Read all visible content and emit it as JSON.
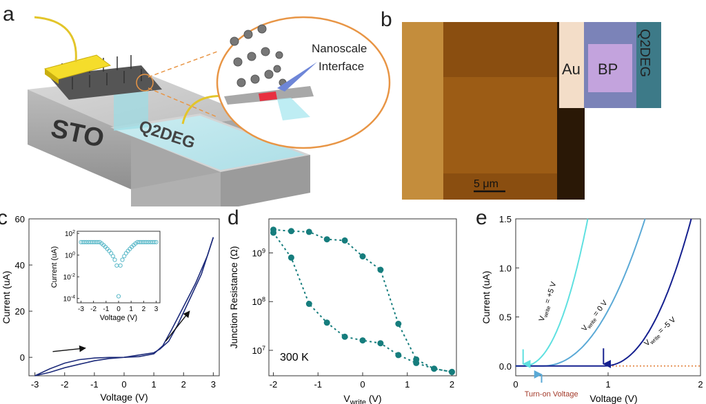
{
  "panels": {
    "a": {
      "letter": "a",
      "labels": {
        "sto": "STO",
        "q2deg": "Q2DEG",
        "callout": [
          "Nanoscale",
          "Interface"
        ]
      }
    },
    "b": {
      "letter": "b",
      "labels": {
        "au": "Au",
        "bp": "BP",
        "q2deg": "Q2DEG",
        "scalebar": "5 μm"
      }
    },
    "c": {
      "letter": "c",
      "chart_data": {
        "type": "line",
        "xlabel": "Voltage (V)",
        "ylabel": "Current (uA)",
        "xlim": [
          -3.2,
          3.2
        ],
        "ylim": [
          -8,
          60
        ],
        "xticks": [
          "-3",
          "-2",
          "-1",
          "0",
          "1",
          "2",
          "3"
        ],
        "yticks": [
          "0",
          "20",
          "40",
          "60"
        ],
        "series": [
          {
            "x": [
              -3,
              -2.5,
              -2,
              -1.5,
              -1,
              -0.5,
              0,
              0.5,
              1,
              1.3,
              1.6,
              2,
              2.4,
              2.8,
              3
            ],
            "y": [
              -8,
              -5,
              -2.5,
              -1,
              -0.3,
              -0.05,
              0,
              0.3,
              1.5,
              5,
              12,
              22,
              32,
              44,
              52
            ]
          },
          {
            "x": [
              3,
              2.6,
              2.2,
              1.8,
              1.5,
              1.2,
              1,
              0.5,
              0,
              -0.5,
              -1,
              -1.5,
              -2,
              -2.5,
              -3
            ],
            "y": [
              52,
              36,
              25,
              14,
              7,
              3.5,
              2,
              1,
              0,
              -0.5,
              -1.5,
              -3,
              -4.5,
              -6.5,
              -8
            ]
          }
        ],
        "inset": {
          "xlabel": "Voltage (V)",
          "ylabel": "Current (uA)",
          "xticks": [
            "-3",
            "-2",
            "-1",
            "0",
            "1",
            "2",
            "3"
          ],
          "yticks": [
            "10^2",
            "10^0",
            "10^-2",
            "10^-4"
          ]
        }
      }
    },
    "d": {
      "letter": "d",
      "chart_data": {
        "type": "scatter",
        "xlabel": "V_write (V)",
        "ylabel": "Junction Resistance (Ω)",
        "yscale": "log",
        "xlim": [
          -2.1,
          2.1
        ],
        "ylim": [
          3000000,
          5000000000
        ],
        "xticks": [
          "-2",
          "-1",
          "0",
          "1",
          "2"
        ],
        "annotation": "300 K",
        "series": [
          {
            "x": [
              -2,
              -1.6,
              -1.2,
              -0.8,
              -0.4,
              0,
              0.4,
              0.8,
              1.2,
              1.6,
              2
            ],
            "y": [
              3000000000,
              2800000000,
              2700000000,
              1900000000,
              1800000000,
              850000000,
              450000000,
              35000000,
              6500000,
              4200000,
              3600000
            ]
          },
          {
            "x": [
              2,
              1.6,
              1.2,
              0.8,
              0.4,
              0,
              -0.4,
              -0.8,
              -1.2,
              -1.6,
              -2
            ],
            "y": [
              3600000,
              4200000,
              5500000,
              8000000,
              14000000,
              16000000,
              19000000,
              37000000,
              90000000,
              800000000,
              2600000000
            ]
          }
        ]
      }
    },
    "e": {
      "letter": "e",
      "chart_data": {
        "type": "line",
        "xlabel": "Voltage (V)",
        "ylabel": "Current (uA)",
        "xlim": [
          0,
          2
        ],
        "ylim": [
          -0.1,
          1.5
        ],
        "xticks": [
          "0",
          "1",
          "2"
        ],
        "yticks": [
          "0.0",
          "0.5",
          "1.0",
          "1.5"
        ],
        "turn_on_label": "Turn-on Voltage",
        "series": [
          {
            "name": "V_write = +5 V",
            "color": "#5ee0e0",
            "onset": 0.08,
            "x_end": 0.78
          },
          {
            "name": "V_write = 0 V",
            "color": "#5aa9d6",
            "onset": 0.28,
            "x_end": 1.4
          },
          {
            "name": "V_write = -5 V",
            "color": "#15208f",
            "onset": 0.95,
            "x_end": 1.9
          }
        ]
      }
    }
  }
}
